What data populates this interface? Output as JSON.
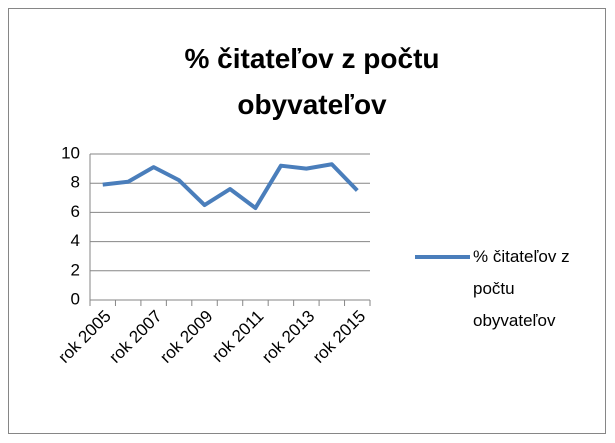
{
  "chart_data": {
    "type": "line",
    "title": "% čitateľov z počtu obyvateľov",
    "categories": [
      "rok 2005",
      null,
      "rok 2007",
      null,
      "rok 2009",
      null,
      "rok 2011",
      null,
      "rok 2013",
      null,
      "rok 2015"
    ],
    "series": [
      {
        "name": "% čitateľov z počtu obyvateľov",
        "color": "#4a7ebb",
        "values": [
          7.9,
          8.1,
          9.1,
          8.2,
          6.5,
          7.6,
          6.3,
          9.2,
          9.0,
          9.3,
          7.5
        ]
      }
    ],
    "ylim": [
      0,
      10
    ],
    "yticks": [
      0,
      2,
      4,
      6,
      8,
      10
    ],
    "grid": true,
    "legend": "right"
  }
}
